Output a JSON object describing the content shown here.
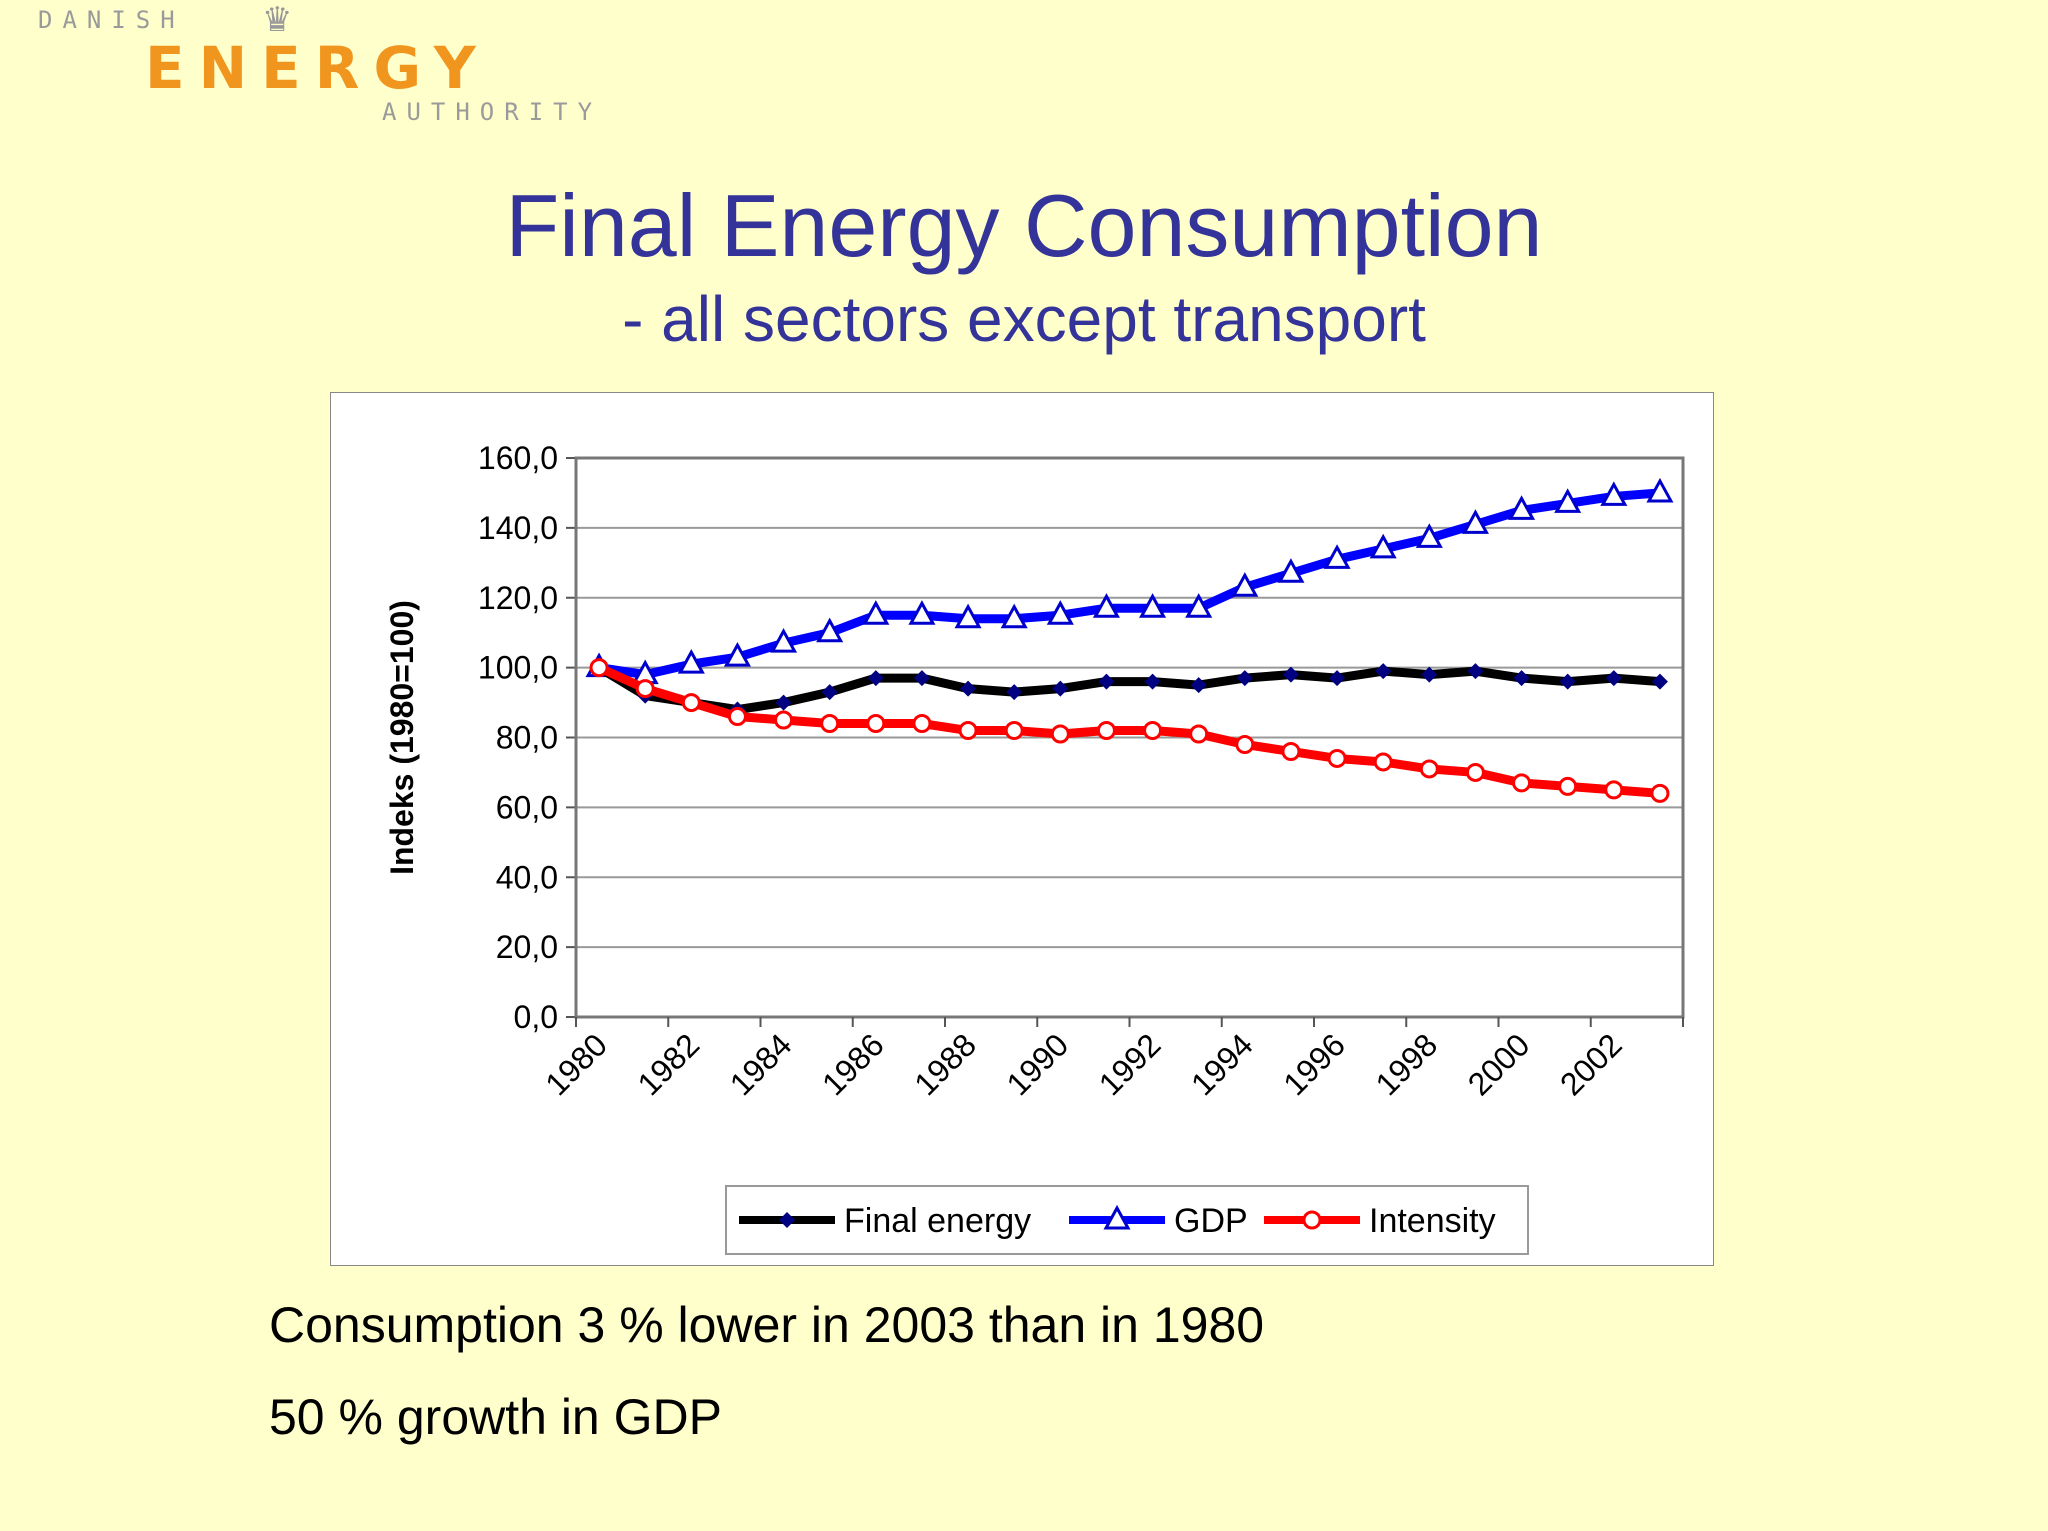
{
  "logo": {
    "line1": "DANISH",
    "line2": "ENERGY",
    "line3": "AUTHORITY"
  },
  "header": {
    "title": "Final Energy Consumption",
    "subtitle": "- all sectors except transport"
  },
  "notes": [
    "Consumption 3 % lower in 2003 than in 1980",
    "50 % growth in GDP"
  ],
  "chart_data": {
    "type": "line",
    "title": "",
    "xlabel": "",
    "ylabel": "Indeks (1980=100)",
    "ylim": [
      0,
      160
    ],
    "yticks": [
      "0,0",
      "20,0",
      "40,0",
      "60,0",
      "80,0",
      "100,0",
      "120,0",
      "140,0",
      "160,0"
    ],
    "x": [
      1980,
      1981,
      1982,
      1983,
      1984,
      1985,
      1986,
      1987,
      1988,
      1989,
      1990,
      1991,
      1992,
      1993,
      1994,
      1995,
      1996,
      1997,
      1998,
      1999,
      2000,
      2001,
      2002,
      2003
    ],
    "xtick_labels": [
      "1980",
      "1982",
      "1984",
      "1986",
      "1988",
      "1990",
      "1992",
      "1994",
      "1996",
      "1998",
      "2000",
      "2002"
    ],
    "grid": true,
    "legend": "bottom",
    "series": [
      {
        "name": "Final energy",
        "color": "#000000",
        "marker": "diamond",
        "values": [
          100,
          92,
          90,
          88,
          90,
          93,
          97,
          97,
          94,
          93,
          94,
          96,
          96,
          95,
          97,
          98,
          97,
          99,
          98,
          99,
          97,
          96,
          97,
          96
        ]
      },
      {
        "name": "GDP",
        "color": "#0000ff",
        "marker": "triangle",
        "values": [
          100,
          98,
          101,
          103,
          107,
          110,
          115,
          115,
          114,
          114,
          115,
          117,
          117,
          117,
          123,
          127,
          131,
          134,
          137,
          141,
          145,
          147,
          149,
          150
        ]
      },
      {
        "name": "Intensity",
        "color": "#ff0000",
        "marker": "circle",
        "values": [
          100,
          94,
          90,
          86,
          85,
          84,
          84,
          84,
          82,
          82,
          81,
          82,
          82,
          81,
          78,
          76,
          74,
          73,
          71,
          70,
          67,
          66,
          65,
          64
        ]
      }
    ]
  }
}
